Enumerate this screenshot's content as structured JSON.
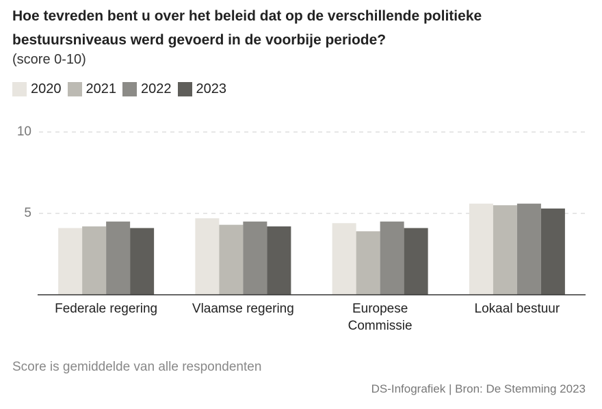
{
  "chart_data": {
    "type": "bar",
    "title": "Hoe tevreden bent u over het beleid dat op de verschillende politieke bestuursniveaus werd gevoerd in de voorbije periode?",
    "subtitle": "(score 0-10)",
    "categories": [
      "Federale regering",
      "Vlaamse regering",
      "Europese Commissie",
      "Lokaal bestuur"
    ],
    "series": [
      {
        "name": "2020",
        "color": "#e8e5df",
        "values": [
          4.1,
          4.7,
          4.4,
          5.6
        ]
      },
      {
        "name": "2021",
        "color": "#bcbab3",
        "values": [
          4.2,
          4.3,
          3.9,
          5.5
        ]
      },
      {
        "name": "2022",
        "color": "#8c8b87",
        "values": [
          4.5,
          4.5,
          4.5,
          5.6
        ]
      },
      {
        "name": "2023",
        "color": "#5f5e5a",
        "values": [
          4.1,
          4.2,
          4.1,
          5.3
        ]
      }
    ],
    "ylim": [
      0,
      10
    ],
    "yticks": [
      5,
      10
    ],
    "grid": true,
    "note": "Score is gemiddelde van alle respondenten",
    "source": "DS-Infografiek | Bron: De Stemming 2023"
  }
}
